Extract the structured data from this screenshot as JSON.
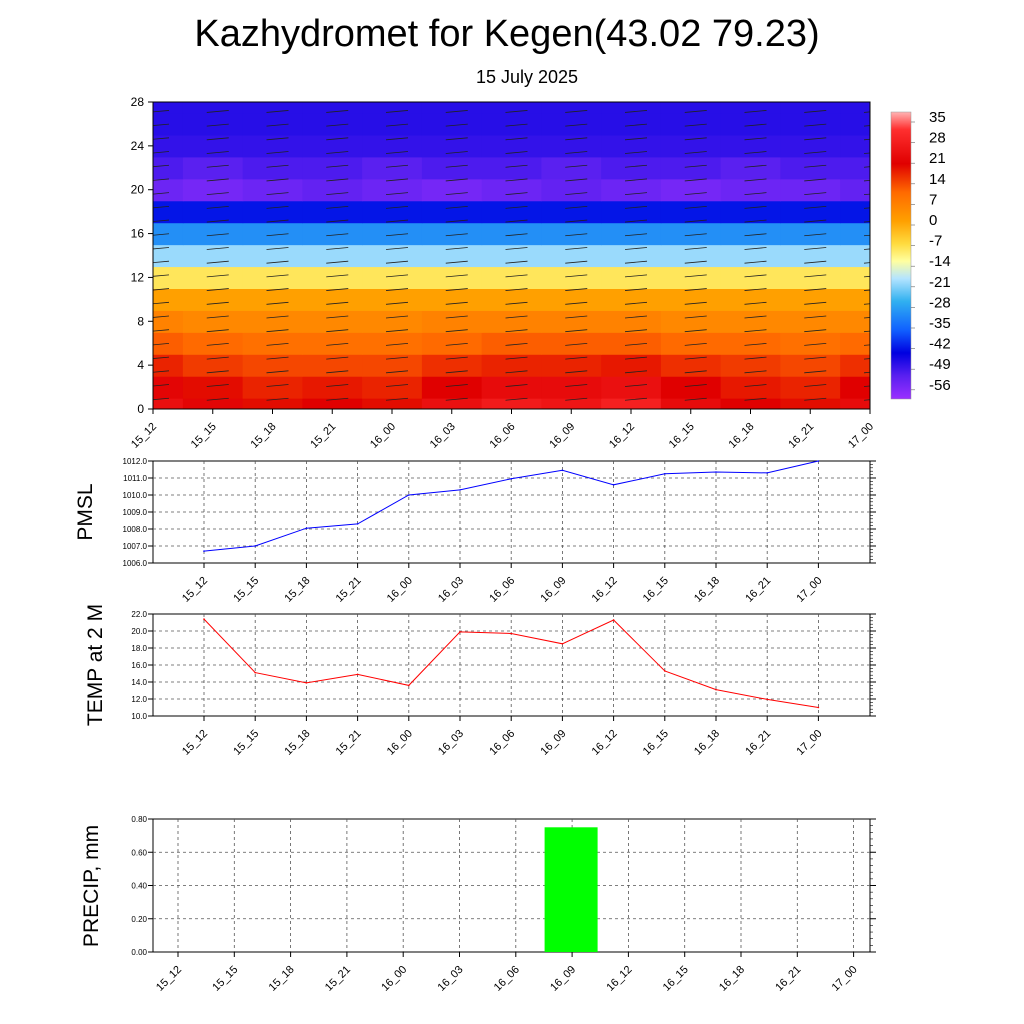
{
  "title": "Kazhydromet for Kegen(43.02 79.23)",
  "subtitle": "15 July 2025",
  "colors": {
    "pmsl_line": "#0000ff",
    "temp_line": "#ff0000",
    "precip_bar": "#00ff00",
    "grid": "#555555"
  },
  "chart_data": [
    {
      "type": "heatmap",
      "name_hint": "temperature cross-section with wind barbs",
      "x": [
        "15_12",
        "15_15",
        "15_18",
        "15_21",
        "16_00",
        "16_03",
        "16_06",
        "16_09",
        "16_12",
        "16_15",
        "16_18",
        "16_21",
        "17_00"
      ],
      "ylim": [
        0,
        28
      ],
      "yticks": [
        0,
        4,
        8,
        12,
        16,
        20,
        24,
        28
      ],
      "colorbar": {
        "labels": [
          "35",
          "28",
          "21",
          "14",
          "7",
          "0",
          "-7",
          "-14",
          "-21",
          "-28",
          "-35",
          "-42",
          "-49",
          "-56"
        ],
        "range": [
          -63,
          42
        ]
      },
      "levels": [
        0,
        2,
        4,
        6,
        8,
        10,
        12,
        14,
        16,
        18,
        20,
        22,
        24,
        26,
        28
      ],
      "values_by_level": {
        "0": [
          24,
          22,
          20,
          21,
          20,
          24,
          26,
          25,
          27,
          23,
          21,
          20,
          23
        ],
        "2": [
          22,
          20,
          18,
          19,
          18,
          21,
          23,
          23,
          24,
          21,
          19,
          18,
          21
        ],
        "4": [
          18,
          16,
          15,
          15,
          15,
          17,
          18,
          18,
          19,
          17,
          16,
          15,
          17
        ],
        "6": [
          13,
          12,
          11,
          11,
          11,
          12,
          13,
          13,
          13,
          12,
          12,
          11,
          12
        ],
        "8": [
          8,
          7,
          7,
          7,
          7,
          8,
          8,
          8,
          8,
          7,
          7,
          7,
          7
        ],
        "10": [
          3,
          3,
          3,
          3,
          3,
          3,
          3,
          3,
          3,
          3,
          3,
          3,
          3
        ],
        "12": [
          -7,
          -7,
          -7,
          -7,
          -7,
          -7,
          -7,
          -7,
          -7,
          -7,
          -7,
          -7,
          -7
        ],
        "14": [
          -20,
          -20,
          -20,
          -20,
          -20,
          -20,
          -20,
          -20,
          -20,
          -20,
          -20,
          -20,
          -20
        ],
        "16": [
          -33,
          -33,
          -33,
          -33,
          -33,
          -33,
          -33,
          -33,
          -33,
          -33,
          -33,
          -33,
          -33
        ],
        "18": [
          -47,
          -47,
          -47,
          -47,
          -47,
          -47,
          -47,
          -47,
          -47,
          -47,
          -47,
          -47,
          -47
        ],
        "20": [
          -58,
          -59,
          -58,
          -57,
          -58,
          -59,
          -58,
          -57,
          -58,
          -59,
          -58,
          -58,
          -57
        ],
        "22": [
          -55,
          -56,
          -55,
          -55,
          -56,
          -55,
          -55,
          -56,
          -55,
          -55,
          -56,
          -55,
          -55
        ],
        "24": [
          -53,
          -53,
          -53,
          -53,
          -53,
          -53,
          -53,
          -53,
          -53,
          -53,
          -53,
          -53,
          -53
        ],
        "26": [
          -52,
          -52,
          -52,
          -52,
          -52,
          -52,
          -52,
          -52,
          -52,
          -52,
          -52,
          -52,
          -52
        ],
        "28": [
          -52,
          -52,
          -52,
          -52,
          -52,
          -52,
          -52,
          -52,
          -52,
          -52,
          -52,
          -52,
          -52
        ]
      }
    },
    {
      "type": "line",
      "ylabel": "PMSL",
      "x": [
        "15_12",
        "15_15",
        "15_18",
        "15_21",
        "16_00",
        "16_03",
        "16_06",
        "16_09",
        "16_12",
        "16_15",
        "16_18",
        "16_21",
        "17_00"
      ],
      "series": [
        {
          "values": [
            1006.7,
            1007.0,
            1008.05,
            1008.3,
            1010.0,
            1010.3,
            1010.95,
            1011.45,
            1010.6,
            1011.25,
            1011.35,
            1011.3,
            1012.0
          ]
        }
      ],
      "ylim": [
        1006.0,
        1012.0
      ],
      "yticks": [
        "1006.0",
        "1007.0",
        "1008.0",
        "1009.0",
        "1010.0",
        "1011.0",
        "1012.0"
      ],
      "grid": true
    },
    {
      "type": "line",
      "ylabel": "TEMP at 2 M",
      "x": [
        "15_12",
        "15_15",
        "15_18",
        "15_21",
        "16_00",
        "16_03",
        "16_06",
        "16_09",
        "16_12",
        "16_15",
        "16_18",
        "16_21",
        "17_00"
      ],
      "series": [
        {
          "values": [
            21.4,
            15.1,
            13.9,
            14.9,
            13.6,
            19.9,
            19.7,
            18.5,
            21.3,
            15.3,
            13.1,
            11.95,
            11.0
          ]
        }
      ],
      "ylim": [
        10.0,
        22.0
      ],
      "yticks": [
        "10.0",
        "12.0",
        "14.0",
        "16.0",
        "18.0",
        "20.0",
        "22.0"
      ],
      "grid": true
    },
    {
      "type": "bar",
      "ylabel": "PRECIP, mm",
      "categories": [
        "15_12",
        "15_15",
        "15_18",
        "15_21",
        "16_00",
        "16_03",
        "16_06",
        "16_09",
        "16_12",
        "16_15",
        "16_18",
        "16_21",
        "17_00"
      ],
      "values": [
        0,
        0,
        0,
        0,
        0,
        0,
        0,
        0.75,
        0,
        0,
        0,
        0,
        0
      ],
      "ylim": [
        0,
        0.8
      ],
      "yticks": [
        "0.00",
        "0.20",
        "0.40",
        "0.60",
        "0.80"
      ],
      "grid": true
    }
  ]
}
